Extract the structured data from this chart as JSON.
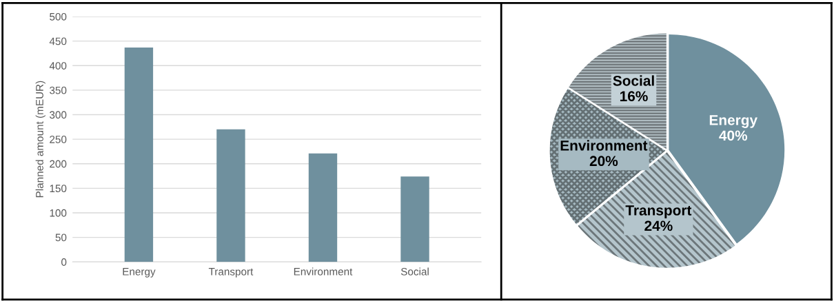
{
  "chart_data": [
    {
      "type": "bar",
      "ylabel": "Planned amount (mEUR)",
      "categories": [
        "Energy",
        "Transport",
        "Environment",
        "Social"
      ],
      "values": [
        437,
        270,
        221,
        174
      ],
      "color": "#6f909e",
      "ylim": [
        0,
        500
      ],
      "yticks": [
        0,
        50,
        100,
        150,
        200,
        250,
        300,
        350,
        400,
        450,
        500
      ],
      "grid": "y"
    },
    {
      "type": "pie",
      "categories": [
        "Energy",
        "Transport",
        "Environment",
        "Social"
      ],
      "values": [
        40,
        24,
        20,
        16
      ],
      "value_labels": [
        "40%",
        "24%",
        "20%",
        "16%"
      ],
      "colors": [
        "#6f909e",
        "#b4c5cc",
        "#a6bac2",
        "#c3d1d7"
      ]
    }
  ]
}
